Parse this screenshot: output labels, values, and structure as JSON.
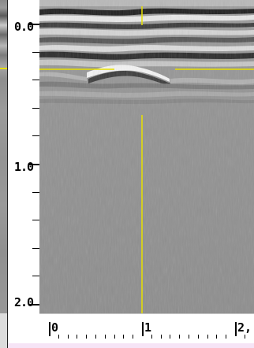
{
  "depth_axis": {
    "labels": [
      "0.0",
      "1.0",
      "2.0"
    ],
    "values": [
      0.0,
      1.0,
      2.0
    ],
    "max": 2.0,
    "minor_per_major": 5
  },
  "position_axis": {
    "labels": [
      "0",
      "1",
      "2"
    ],
    "values": [
      0,
      1,
      2
    ],
    "minor_per_major": 10,
    "label_suffix_last": ","
  },
  "cursor": {
    "position": 1.0,
    "depth": 0.27
  },
  "colors": {
    "cursor": "#e7e000",
    "scan_background": "#8f8f8f",
    "status_strip": "#f6e4f6"
  }
}
